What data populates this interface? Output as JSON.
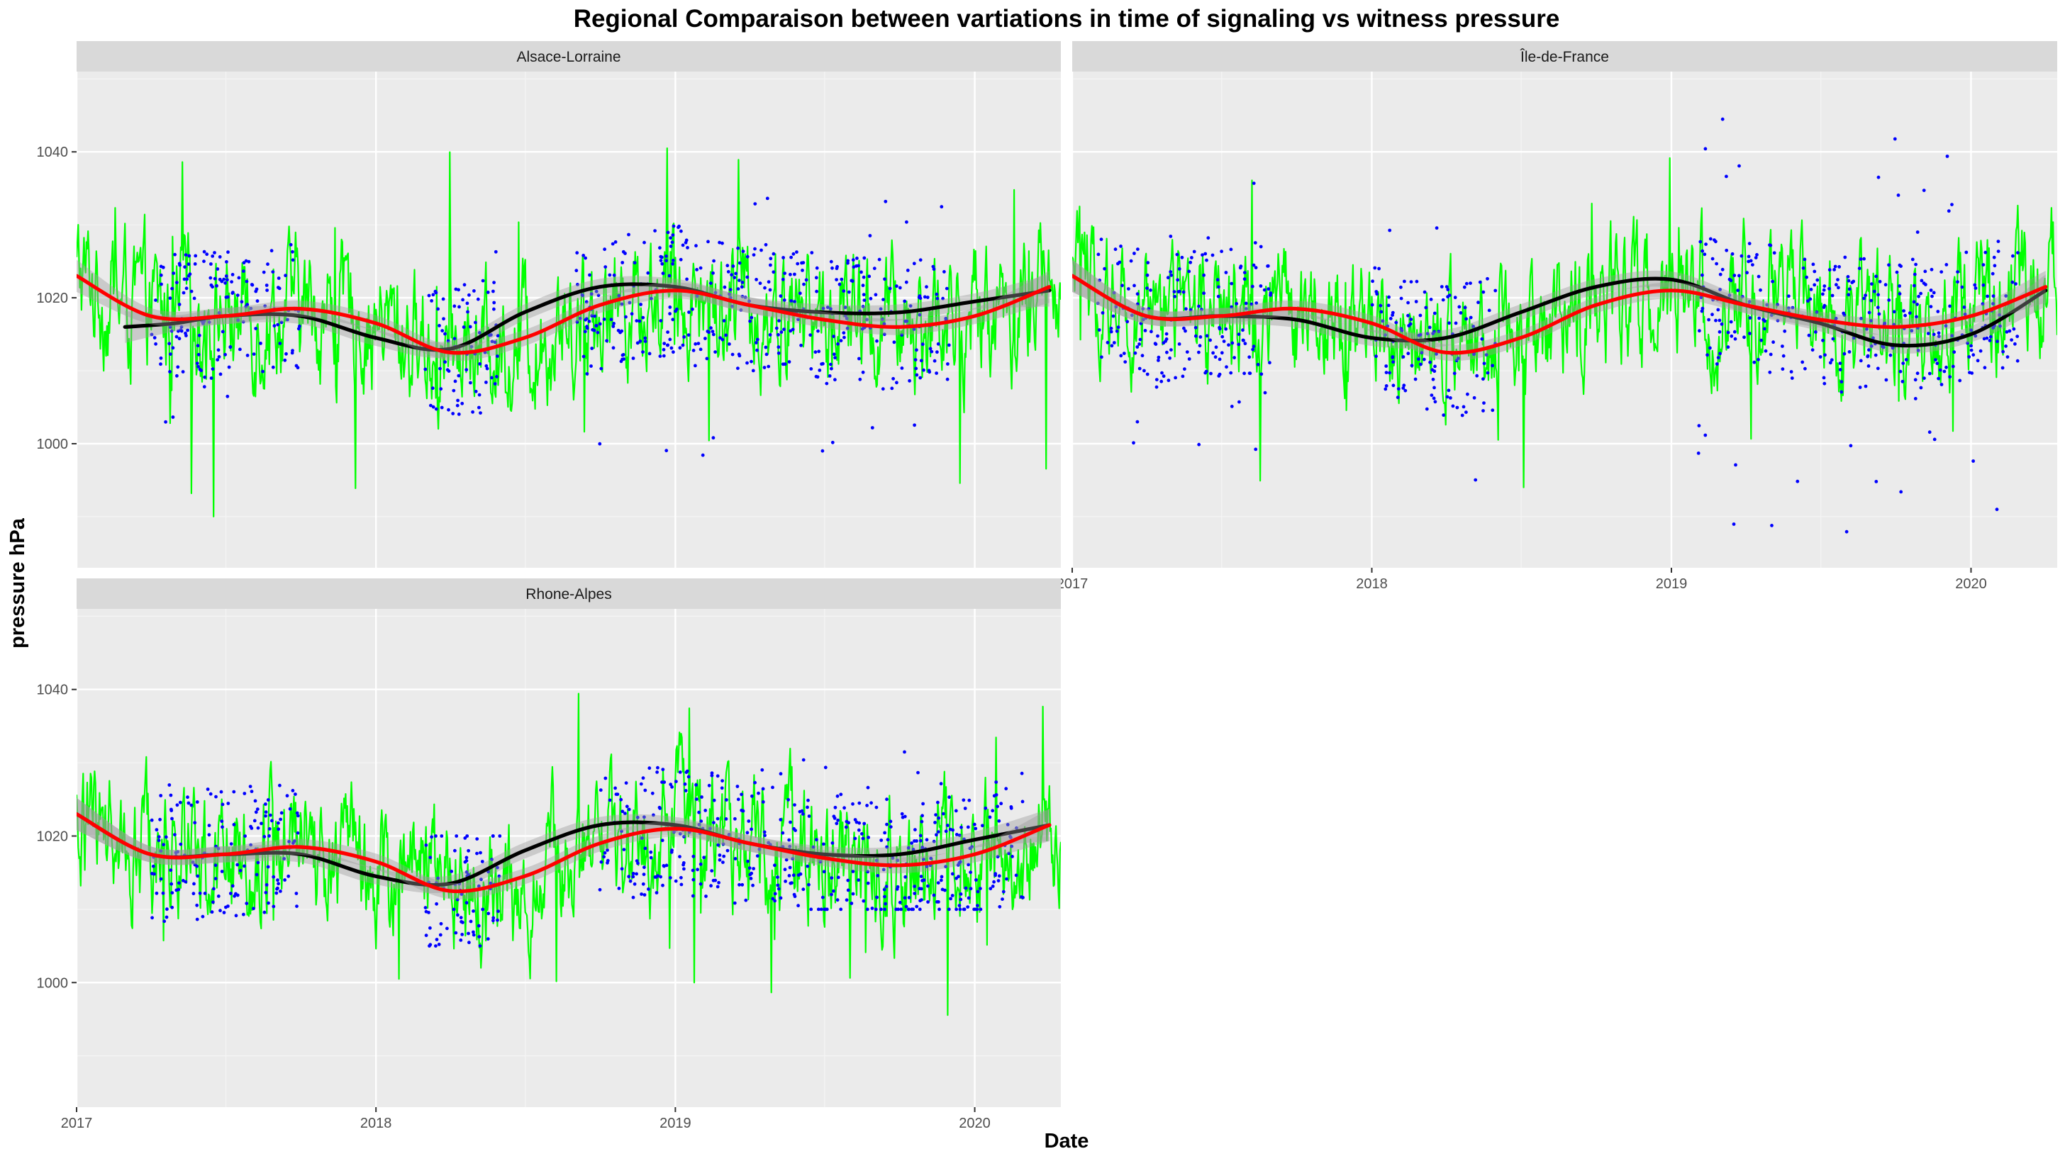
{
  "chart_data": {
    "type": "line",
    "title": "Regional Comparaison between vartiations in time of signaling vs witness pressure",
    "xlabel": "Date",
    "ylabel": "pressure hPa",
    "x_ticks": [
      "2017",
      "2018",
      "2019",
      "2020"
    ],
    "y_ticks": [
      1000,
      1020,
      1040
    ],
    "xlim": [
      "2017-01-01",
      "2020-04-15"
    ],
    "ylim": [
      983,
      1051
    ],
    "grid": true,
    "legend": "none",
    "colors": {
      "witness_line": "#00ff00",
      "signaling_points": "#0000ff",
      "signaling_smooth": "#000000",
      "witness_smooth": "#ff0000",
      "confidence_band": "#999999",
      "panel_bg": "#ebebeb",
      "strip_bg": "#d9d9d9"
    },
    "panels": [
      {
        "name": "Alsace-Lorraine",
        "witness_smooth": {
          "x": [
            "2017-01-01",
            "2017-04-01",
            "2017-07-01",
            "2017-10-01",
            "2018-01-01",
            "2018-04-01",
            "2018-07-01",
            "2018-10-01",
            "2019-01-01",
            "2019-04-01",
            "2019-07-01",
            "2019-10-01",
            "2020-01-01",
            "2020-04-01"
          ],
          "y": [
            1023,
            1017.5,
            1017.5,
            1018.5,
            1016.5,
            1012.5,
            1014.5,
            1019,
            1021,
            1019,
            1017,
            1016,
            1017.5,
            1021.5
          ]
        },
        "signaling_smooth": {
          "x": [
            "2017-03-01",
            "2017-05-01",
            "2017-07-01",
            "2017-10-01",
            "2018-01-01",
            "2018-04-01",
            "2018-07-01",
            "2018-10-01",
            "2019-01-01",
            "2019-04-01",
            "2019-07-01",
            "2019-10-01",
            "2020-01-01",
            "2020-04-01"
          ],
          "y": [
            1016,
            1016.5,
            1017.5,
            1017.5,
            1014.5,
            1013,
            1018,
            1021.5,
            1021.5,
            1019,
            1018,
            1018,
            1019.5,
            1021
          ]
        },
        "signaling_clusters": [
          {
            "x": [
              "2017-04-01",
              "2017-10-01"
            ],
            "y": [
              1002,
              1028
            ]
          },
          {
            "x": [
              "2018-03-01",
              "2018-06-01"
            ],
            "y": [
              1004,
              1029
            ]
          },
          {
            "x": [
              "2018-09-01",
              "2019-12-01"
            ],
            "y": [
              997,
              1036
            ]
          }
        ]
      },
      {
        "name": "Île-de-France",
        "witness_smooth": {
          "x": [
            "2017-01-01",
            "2017-04-01",
            "2017-07-01",
            "2017-10-01",
            "2018-01-01",
            "2018-04-01",
            "2018-07-01",
            "2018-10-01",
            "2019-01-01",
            "2019-04-01",
            "2019-07-01",
            "2019-10-01",
            "2020-01-01",
            "2020-04-01"
          ],
          "y": [
            1023,
            1017.5,
            1017.5,
            1018.5,
            1016.5,
            1012.5,
            1014.5,
            1019,
            1021,
            1019,
            1017,
            1016,
            1017.5,
            1021.5
          ]
        },
        "signaling_smooth": {
          "x": [
            "2017-01-01",
            "2017-04-01",
            "2017-07-01",
            "2017-10-01",
            "2018-01-01",
            "2018-04-01",
            "2018-07-01",
            "2018-10-01",
            "2019-01-01",
            "2019-04-01",
            "2019-07-01",
            "2019-10-01",
            "2020-01-01",
            "2020-04-01"
          ],
          "y": [
            1023,
            1017.5,
            1017.5,
            1017,
            1014.5,
            1014.5,
            1018,
            1021.5,
            1022.5,
            1019,
            1016.5,
            1013.5,
            1015,
            1021
          ]
        },
        "signaling_clusters": [
          {
            "x": [
              "2017-02-01",
              "2017-09-01"
            ],
            "y": [
              998,
              1036
            ]
          },
          {
            "x": [
              "2018-01-01",
              "2018-06-01"
            ],
            "y": [
              991,
              1031
            ]
          },
          {
            "x": [
              "2019-02-01",
              "2020-03-01"
            ],
            "y": [
              986,
              1046
            ]
          }
        ]
      },
      {
        "name": "Rhone-Alpes",
        "witness_smooth": {
          "x": [
            "2017-01-01",
            "2017-04-01",
            "2017-07-01",
            "2017-10-01",
            "2018-01-01",
            "2018-04-01",
            "2018-07-01",
            "2018-10-01",
            "2019-01-01",
            "2019-04-01",
            "2019-07-01",
            "2019-10-01",
            "2020-01-01",
            "2020-04-01"
          ],
          "y": [
            1023,
            1017.5,
            1017.5,
            1018.5,
            1016.5,
            1012.5,
            1014.5,
            1019,
            1021,
            1019,
            1017,
            1016,
            1017.5,
            1021.5
          ]
        },
        "signaling_smooth": {
          "x": [
            "2017-01-01",
            "2017-04-01",
            "2017-07-01",
            "2017-10-01",
            "2018-01-01",
            "2018-04-01",
            "2018-07-01",
            "2018-10-01",
            "2019-01-01",
            "2019-04-01",
            "2019-07-01",
            "2019-10-01",
            "2020-01-01",
            "2020-04-01"
          ],
          "y": [
            1023,
            1017.5,
            1017.5,
            1017.5,
            1014.5,
            1013.5,
            1018,
            1021.5,
            1021.5,
            1019,
            1017.5,
            1017.5,
            1019.5,
            1021.5
          ]
        },
        "signaling_clusters": [
          {
            "x": [
              "2017-04-01",
              "2017-10-01"
            ],
            "y": [
              1008,
              1028
            ]
          },
          {
            "x": [
              "2018-03-01",
              "2018-06-01"
            ],
            "y": [
              1005,
              1020
            ]
          },
          {
            "x": [
              "2018-10-01",
              "2020-03-01"
            ],
            "y": [
              1010,
              1032
            ]
          }
        ]
      }
    ]
  }
}
